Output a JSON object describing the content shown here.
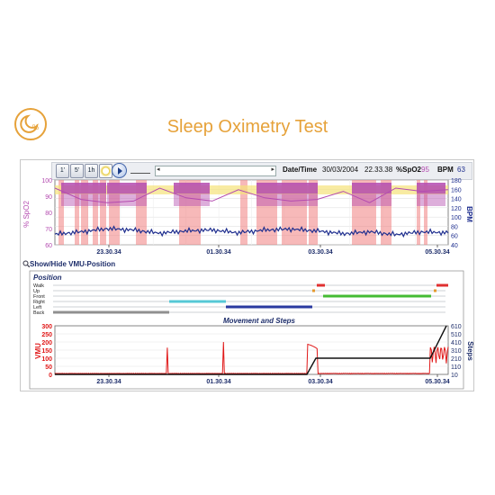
{
  "page_title": "Sleep Oximetry Test",
  "logo_icon": "moon-percent-icon",
  "toolbar": {
    "btn_1m": "1'",
    "btn_5m": "5'",
    "btn_1h": "1h",
    "datetime_label": "Date/Time",
    "date_value": "30/03/2004",
    "time_value": "22.33.38",
    "spo2_label": "%SpO2",
    "spo2_value": "95",
    "bpm_label": "BPM",
    "bpm_value": "63"
  },
  "oximetry_chart": {
    "left_axis_label": "% SpO2",
    "right_axis_label": "BPM",
    "left_ticks": [
      "100",
      "90",
      "80",
      "70",
      "60"
    ],
    "right_ticks": [
      "180",
      "160",
      "140",
      "120",
      "100",
      "80",
      "60",
      "40"
    ],
    "x_ticks": [
      "23.30.34",
      "01.30.34",
      "03.30.34",
      "05.30.34"
    ]
  },
  "vmu_toggle": "Show/Hide VMU-Position",
  "position_chart": {
    "title": "Position",
    "rows": [
      "Walk",
      "Up",
      "Front",
      "Right",
      "Left",
      "Back"
    ]
  },
  "movement_chart": {
    "title": "Movement and Steps",
    "left_axis_label": "VMU",
    "right_axis_label": "Steps",
    "left_ticks": [
      "300",
      "250",
      "200",
      "150",
      "100",
      "50",
      "0"
    ],
    "right_ticks": [
      "610",
      "510",
      "410",
      "310",
      "210",
      "110",
      "10"
    ],
    "x_ticks": [
      "23.30.34",
      "01.30.34",
      "03.30.34",
      "05.30.34"
    ]
  },
  "colors": {
    "title_orange": "#e6a23a",
    "spo2_magenta": "#b44bb0",
    "bpm_blue": "#1f2f8f",
    "desat_red": "#f08080",
    "vmu_red": "#e01818",
    "front_green": "#44bb33",
    "right_cyan": "#55c8d6",
    "left_navy": "#2a3aa0",
    "back_gray": "#909090",
    "walk_red": "#e03030"
  },
  "chart_data": [
    {
      "type": "line",
      "series": [
        {
          "name": "%SpO2",
          "x": [
            "22:00",
            "22:30",
            "23:00",
            "23:30",
            "00:00",
            "00:30",
            "01:00",
            "01:30",
            "02:00",
            "02:30",
            "03:00",
            "03:30",
            "04:00",
            "04:30",
            "05:00",
            "05:30"
          ],
          "values": [
            95,
            88,
            86,
            87,
            95,
            89,
            87,
            94,
            89,
            87,
            88,
            93,
            86,
            95,
            93,
            94
          ]
        },
        {
          "name": "BPM",
          "x": [
            "22:00",
            "22:30",
            "23:00",
            "23:30",
            "00:00",
            "00:30",
            "01:00",
            "01:30",
            "02:00",
            "02:30",
            "03:00",
            "03:30",
            "04:00",
            "04:30",
            "05:00",
            "05:30"
          ],
          "values": [
            63,
            68,
            75,
            72,
            65,
            70,
            72,
            66,
            72,
            74,
            70,
            64,
            68,
            62,
            68,
            66
          ]
        }
      ],
      "xlabel": "",
      "ylabel": "% SpO2",
      "y2label": "BPM",
      "ylim": [
        60,
        100
      ],
      "y2lim": [
        40,
        180
      ]
    },
    {
      "type": "line",
      "series": [
        {
          "name": "VMU",
          "x": [
            "22:00",
            "23:00",
            "00:00",
            "00:30",
            "01:00",
            "01:30",
            "02:00",
            "02:30",
            "02:50",
            "03:00",
            "03:30",
            "04:00",
            "04:30",
            "05:00",
            "05:20"
          ],
          "values": [
            5,
            5,
            5,
            165,
            5,
            200,
            5,
            5,
            160,
            30,
            5,
            5,
            5,
            5,
            170
          ]
        },
        {
          "name": "Steps",
          "x": [
            "22:00",
            "02:50",
            "03:00",
            "05:00",
            "05:20"
          ],
          "values": [
            10,
            10,
            210,
            210,
            610
          ]
        }
      ],
      "ylabel": "VMU",
      "y2label": "Steps",
      "ylim": [
        0,
        300
      ],
      "y2lim": [
        10,
        610
      ]
    }
  ]
}
